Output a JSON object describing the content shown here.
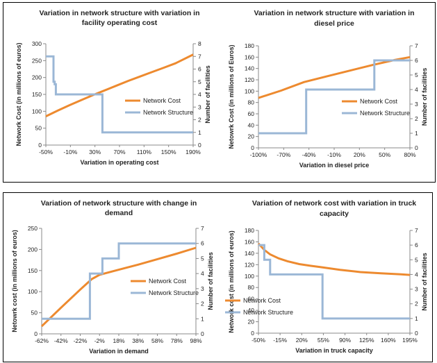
{
  "chart_data": [
    {
      "type": "line",
      "title_lines": [
        "Variation in network structure with variation in",
        "facility operating cost"
      ],
      "xlabel": "Variation in operating cost",
      "ylabel": "Network Cost  (in millions of euros)",
      "y2label": "Number of facilities",
      "x_tick_labels": [
        "-50%",
        "-10%",
        "30%",
        "70%",
        "110%",
        "150%",
        "190%"
      ],
      "x_range": [
        -50,
        200
      ],
      "ylim": [
        0,
        300
      ],
      "y_ticks": [
        0,
        50,
        100,
        150,
        200,
        250,
        300
      ],
      "y2lim": [
        0,
        8
      ],
      "y2_ticks": [
        0,
        1,
        2,
        3,
        4,
        5,
        6,
        7,
        8
      ],
      "legend_position": "right",
      "grid": false,
      "series": [
        {
          "name": "Network Cost",
          "axis": "left",
          "color": "#ed8a2f",
          "x": [
            -50,
            -30,
            -10,
            10,
            30,
            50,
            70,
            90,
            110,
            130,
            150,
            170,
            200
          ],
          "y": [
            85,
            102,
            118,
            133,
            148,
            162,
            176,
            190,
            203,
            216,
            229,
            242,
            268
          ]
        },
        {
          "name": "Network Structure",
          "axis": "right",
          "color": "#9bb7d6",
          "x": [
            -50,
            -37,
            -37,
            -35,
            -35,
            -33,
            -33,
            46,
            46,
            200
          ],
          "y": [
            7,
            7,
            5,
            5,
            4.8,
            4.8,
            4,
            4,
            1,
            1
          ]
        }
      ]
    },
    {
      "type": "line",
      "title_lines": [
        "Variation in network structure with variation in",
        "diesel price"
      ],
      "xlabel": "Variation in diesel price",
      "ylabel": "Netowrk Cost (in millions of Euros)",
      "y2label": "Number of facilities",
      "x_tick_labels": [
        "-100%",
        "-70%",
        "-40%",
        "-10%",
        "20%",
        "50%",
        "80%"
      ],
      "x_range": [
        -100,
        100
      ],
      "ylim": [
        0,
        180
      ],
      "y_ticks": [
        0,
        20,
        40,
        60,
        80,
        100,
        120,
        140,
        160,
        180
      ],
      "y2lim": [
        0,
        7
      ],
      "y2_ticks": [
        0,
        1,
        2,
        3,
        4,
        5,
        6,
        7
      ],
      "legend_position": "right",
      "grid": false,
      "series": [
        {
          "name": "Network Cost",
          "axis": "left",
          "color": "#ed8a2f",
          "x": [
            -100,
            -70,
            -40,
            -10,
            20,
            50,
            80,
            100
          ],
          "y": [
            88,
            101,
            116,
            126,
            136,
            146,
            155,
            160
          ]
        },
        {
          "name": "Network Structure",
          "axis": "right",
          "color": "#9bb7d6",
          "x": [
            -100,
            -37,
            -37,
            53,
            53,
            100
          ],
          "y": [
            1,
            1,
            4,
            4,
            6,
            6
          ]
        }
      ]
    },
    {
      "type": "line",
      "title_lines": [
        "Variation of network structure with change in",
        "demand"
      ],
      "xlabel": "Variation in demand",
      "ylabel": "Netowrk cost  (in millions of euros)",
      "y2label": "Number of facilities",
      "x_tick_labels": [
        "-62%",
        "-42%",
        "-22%",
        "-2%",
        "18%",
        "38%",
        "58%",
        "78%",
        "98%"
      ],
      "x_range": [
        -62,
        98
      ],
      "ylim": [
        0,
        250
      ],
      "y_ticks": [
        0,
        50,
        100,
        150,
        200,
        250
      ],
      "y2lim": [
        0,
        7
      ],
      "y2_ticks": [
        0,
        1,
        2,
        3,
        4,
        5,
        6,
        7
      ],
      "legend_position": "right",
      "grid": false,
      "series": [
        {
          "name": "Network Cost",
          "axis": "left",
          "color": "#ed8a2f",
          "x": [
            -62,
            -42,
            -22,
            -10,
            -2,
            18,
            38,
            58,
            78,
            98
          ],
          "y": [
            18,
            62,
            105,
            130,
            140,
            152,
            164,
            177,
            190,
            204
          ]
        },
        {
          "name": "Network Structure",
          "axis": "right",
          "color": "#9bb7d6",
          "x": [
            -62,
            -12,
            -12,
            1,
            1,
            7,
            7,
            18,
            18,
            98
          ],
          "y": [
            1,
            1,
            4,
            4,
            5,
            5,
            5,
            5,
            6,
            6
          ]
        }
      ]
    },
    {
      "type": "line",
      "title_lines": [
        "Variation of network cost with variation in truck",
        "capacity"
      ],
      "xlabel": "Variation in truck capacity",
      "ylabel": "Network cost (in millions of euros)",
      "y2label": "Number of facilities",
      "x_tick_labels": [
        "-50%",
        "-15%",
        "20%",
        "55%",
        "90%",
        "125%",
        "160%",
        "195%"
      ],
      "x_range": [
        -50,
        210
      ],
      "ylim": [
        0,
        180
      ],
      "y_ticks": [
        0,
        20,
        40,
        60,
        80,
        100,
        120,
        140,
        160,
        180
      ],
      "y2lim": [
        0,
        7
      ],
      "y2_ticks": [
        0,
        1,
        2,
        3,
        4,
        5,
        6,
        7
      ],
      "legend_position": "left",
      "grid": false,
      "series": [
        {
          "name": "Network Cost",
          "axis": "left",
          "color": "#ed8a2f",
          "x": [
            -50,
            -40,
            -30,
            -15,
            0,
            20,
            40,
            55,
            90,
            125,
            160,
            195,
            210
          ],
          "y": [
            157,
            146,
            138,
            131,
            126,
            121,
            118,
            116,
            111,
            107,
            105,
            103,
            102
          ]
        },
        {
          "name": "Network Structure",
          "axis": "right",
          "color": "#9bb7d6",
          "x": [
            -50,
            -40,
            -40,
            -30,
            -30,
            60,
            60,
            210
          ],
          "y": [
            6,
            6,
            5,
            5,
            4,
            4,
            1,
            1
          ]
        }
      ]
    }
  ]
}
